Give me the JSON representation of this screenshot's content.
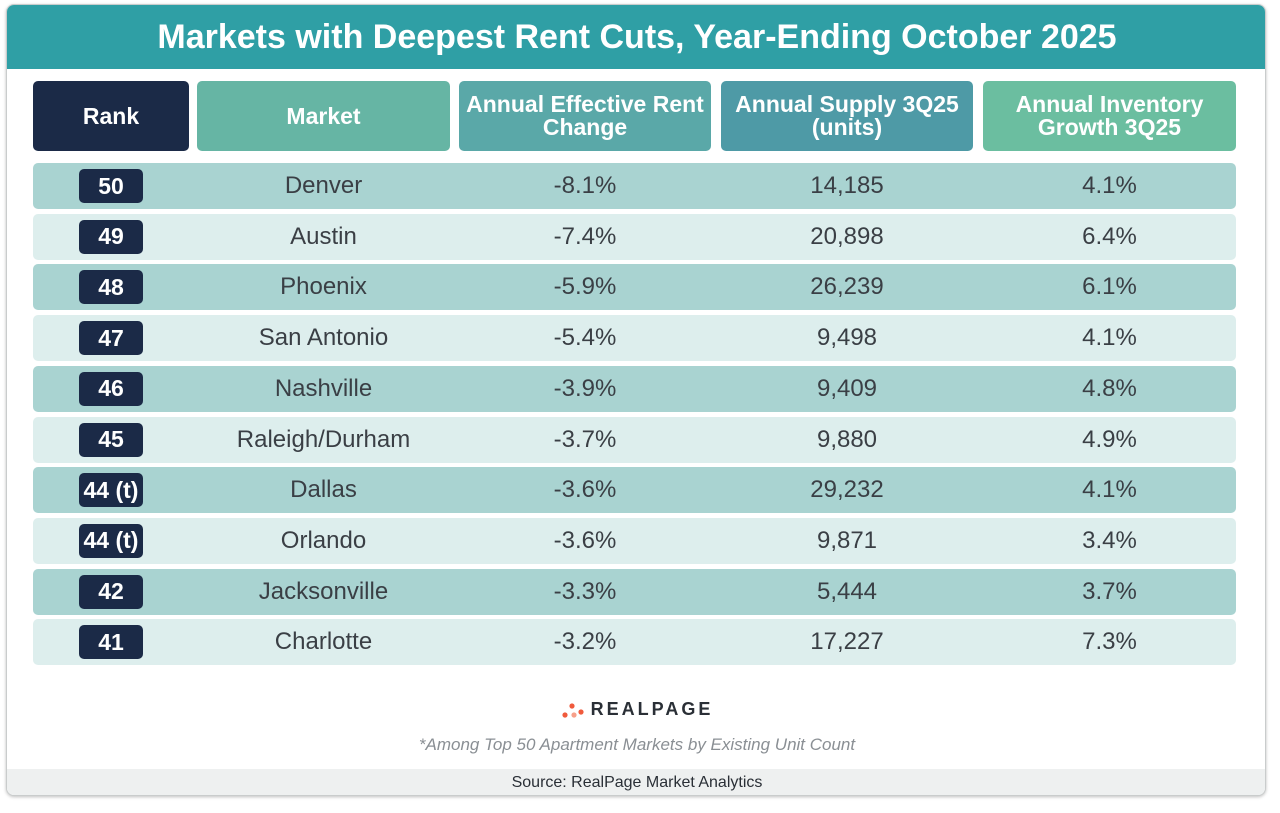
{
  "header": {
    "title": "Markets with Deepest Rent Cuts, Year-Ending October 2025"
  },
  "table": {
    "columns": [
      "Rank",
      "Market",
      "Annual Effective Rent Change",
      "Annual Supply 3Q25 (units)",
      "Annual Inventory Growth 3Q25"
    ],
    "rows": [
      [
        "50",
        "Denver",
        "-8.1%",
        "14,185",
        "4.1%"
      ],
      [
        "49",
        "Austin",
        "-7.4%",
        "20,898",
        "6.4%"
      ],
      [
        "48",
        "Phoenix",
        "-5.9%",
        "26,239",
        "6.1%"
      ],
      [
        "47",
        "San Antonio",
        "-5.4%",
        "9,498",
        "4.1%"
      ],
      [
        "46",
        "Nashville",
        "-3.9%",
        "9,409",
        "4.8%"
      ],
      [
        "45",
        "Raleigh/Durham",
        "-3.7%",
        "9,880",
        "4.9%"
      ],
      [
        "44 (t)",
        "Dallas",
        "-3.6%",
        "29,232",
        "4.1%"
      ],
      [
        "44 (t)",
        "Orlando",
        "-3.6%",
        "9,871",
        "3.4%"
      ],
      [
        "42",
        "Jacksonville",
        "-3.3%",
        "5,444",
        "3.7%"
      ],
      [
        "41",
        "Charlotte",
        "-3.2%",
        "17,227",
        "7.3%"
      ]
    ]
  },
  "footer": {
    "logo": "REALPAGE",
    "footnote": "*Among Top 50 Apartment Markets by Existing Unit Count",
    "source": "Source: RealPage Market Analytics"
  }
}
